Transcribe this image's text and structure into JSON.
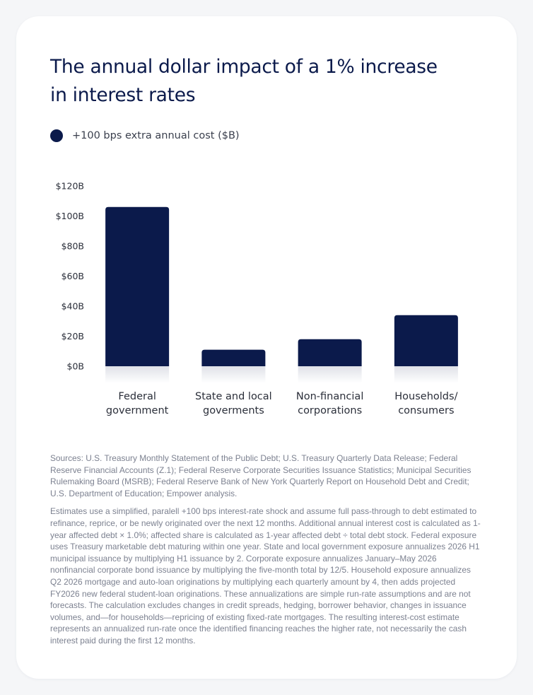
{
  "title": "The annual dollar impact of a 1% increase in interest rates",
  "legend": {
    "label": "+100 bps extra annual cost ($B)",
    "color": "#0b1a4b"
  },
  "chart_data": {
    "type": "bar",
    "title": "The annual dollar impact of a 1% increase in interest rates",
    "categories": [
      [
        "Federal",
        "government"
      ],
      [
        "State and local",
        "goverments"
      ],
      [
        "Non-financial",
        "corporations"
      ],
      [
        "Households/",
        "consumers"
      ]
    ],
    "series": [
      {
        "name": "+100 bps extra annual cost ($B)",
        "values": [
          106,
          11,
          18,
          34
        ],
        "color": "#0b1a4b"
      }
    ],
    "ylim": [
      0,
      120
    ],
    "yticks": [
      0,
      20,
      40,
      60,
      80,
      100,
      120
    ],
    "ytick_labels": [
      "$0B",
      "$20B",
      "$40B",
      "$60B",
      "$80B",
      "$100B",
      "$120B"
    ],
    "grid": false,
    "legend_position": "top-left",
    "xlabel": "",
    "ylabel": ""
  },
  "notes": {
    "sources": "Sources: U.S. Treasury Monthly Statement of the Public Debt; U.S. Treasury Quarterly Data Release; Federal Reserve Financial Accounts (Z.1); Federal Reserve Corporate Securities Issuance Statistics; Municipal Securities Rulemaking Board (MSRB); Federal Reserve Bank of New York Quarterly Report on Household Debt and Credit; U.S. Department of Education; Empower analysis.",
    "methodology": "Estimates use a simplified, paralell +100 bps interest-rate shock and assume full pass-through to debt estimated to refinance, reprice, or be newly originated over the next 12 months. Additional annual interest cost is calculated as 1-year affected debt × 1.0%; affected share is calculated as 1-year affected debt ÷ total debt stock. Federal exposure uses Treasury marketable debt maturing within one year. State and local government exposure annualizes 2026 H1 municipal issuance by multiplying H1 issuance by 2. Corporate exposure annualizes January–May 2026 nonfinancial corporate bond issuance by multiplying the five-month total by 12/5. Household exposure annualizes Q2 2026 mortgage and auto-loan originations by multiplying each quarterly amount by 4, then adds projected FY2026 new federal student-loan originations. These annualizations are simple run-rate assumptions and are not forecasts. The calculation excludes changes in credit spreads, hedging, borrower behavior, changes in issuance volumes, and—for households—repricing of existing fixed-rate mortgages. The resulting interest-cost estimate represents an annualized run-rate once the identified financing reaches the higher rate, not necessarily the cash interest paid during the first 12 months."
  }
}
